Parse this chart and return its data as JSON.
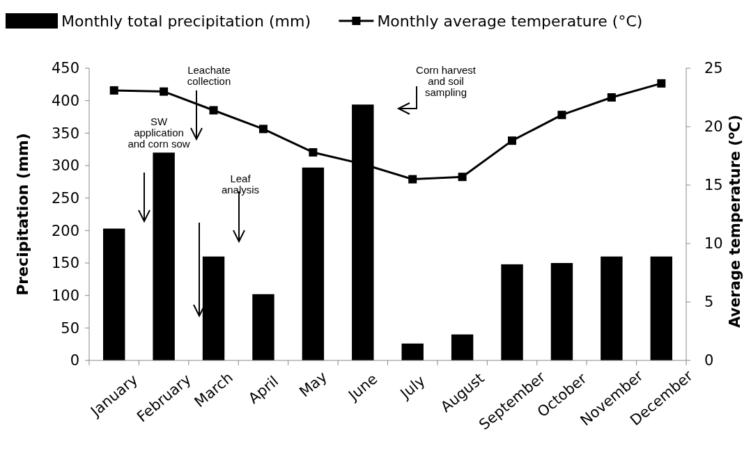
{
  "chart_data": {
    "type": "bar",
    "categories": [
      "January",
      "February",
      "March",
      "April",
      "May",
      "June",
      "July",
      "August",
      "September",
      "October",
      "November",
      "December"
    ],
    "ylabel": "Precipitation (mm)",
    "y2label": "Average temperature  ($^{o}$C)",
    "ylim": [
      0,
      450
    ],
    "yticks": [
      0,
      50,
      100,
      150,
      200,
      250,
      300,
      350,
      400,
      450
    ],
    "y2lim": [
      0,
      25
    ],
    "y2ticks": [
      0,
      5,
      10,
      15,
      20,
      25
    ],
    "legend": "top",
    "marker": "square",
    "series": [
      {
        "name": "Monthly total precipitation (mm)",
        "color": "#000000",
        "values": [
          203,
          320,
          160,
          102,
          297,
          394,
          26,
          40,
          148,
          150,
          160,
          160
        ]
      },
      {
        "name": "Monthly average temperature (°C)",
        "type": "line",
        "axis": "y2",
        "color": "#000000",
        "values": [
          23.1,
          23.0,
          21.4,
          19.8,
          17.8,
          16.8,
          15.5,
          15.7,
          18.8,
          21.0,
          22.5,
          23.7
        ]
      }
    ],
    "annotations": [
      "SW application and corn sow",
      "Leachate collection",
      "Leaf analysis",
      "Corn harvest and soil sampling"
    ]
  }
}
